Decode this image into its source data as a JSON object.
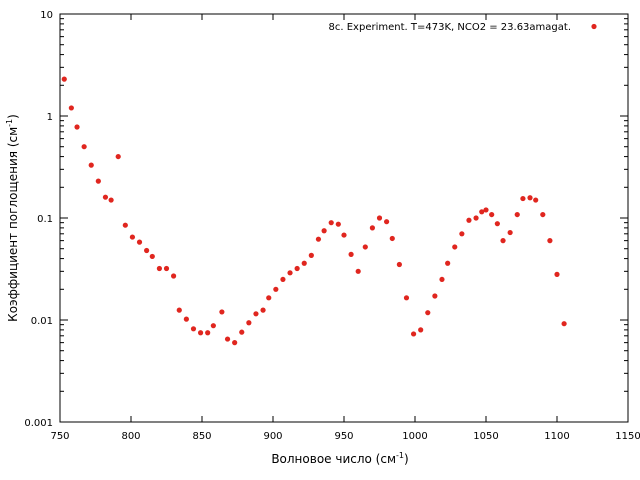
{
  "chart_data": {
    "type": "scatter",
    "xlabel_base": "Волновое число (см",
    "xlabel_sup": "-1",
    "xlabel_end": ")",
    "ylabel_base": "Коэффициент поглощения (см",
    "ylabel_sup": "-1",
    "ylabel_end": ")",
    "xlim": [
      750,
      1150
    ],
    "ylim": [
      0.001,
      10
    ],
    "yscale": "log",
    "legend_position": "top-right",
    "x_ticks": [
      750,
      800,
      850,
      900,
      950,
      1000,
      1050,
      1100,
      1150
    ],
    "x_tick_labels": [
      "750",
      "800",
      "850",
      "900",
      "950",
      "1000",
      "1050",
      "1100",
      "1150"
    ],
    "y_ticks": [
      0.001,
      0.01,
      0.1,
      1,
      10
    ],
    "y_tick_labels": [
      "0.001",
      "0.01",
      "0.1",
      "1",
      "10"
    ],
    "series": [
      {
        "name": "8c. Experiment. T=473K, NCO2 = 23.63amagat.",
        "color": "#e0261f",
        "points": [
          [
            753,
            2.3
          ],
          [
            758,
            1.2
          ],
          [
            762,
            0.78
          ],
          [
            767,
            0.5
          ],
          [
            772,
            0.33
          ],
          [
            777,
            0.23
          ],
          [
            782,
            0.16
          ],
          [
            786,
            0.15
          ],
          [
            791,
            0.4
          ],
          [
            796,
            0.085
          ],
          [
            801,
            0.065
          ],
          [
            806,
            0.058
          ],
          [
            811,
            0.048
          ],
          [
            815,
            0.042
          ],
          [
            820,
            0.032
          ],
          [
            825,
            0.032
          ],
          [
            830,
            0.027
          ],
          [
            834,
            0.0125
          ],
          [
            839,
            0.0102
          ],
          [
            844,
            0.0082
          ],
          [
            849,
            0.0075
          ],
          [
            854,
            0.0075
          ],
          [
            858,
            0.0088
          ],
          [
            864,
            0.012
          ],
          [
            868,
            0.0065
          ],
          [
            873,
            0.006
          ],
          [
            878,
            0.0076
          ],
          [
            883,
            0.0094
          ],
          [
            888,
            0.0115
          ],
          [
            893,
            0.0125
          ],
          [
            897,
            0.0165
          ],
          [
            902,
            0.02
          ],
          [
            907,
            0.025
          ],
          [
            912,
            0.029
          ],
          [
            917,
            0.032
          ],
          [
            922,
            0.036
          ],
          [
            927,
            0.043
          ],
          [
            932,
            0.062
          ],
          [
            936,
            0.075
          ],
          [
            941,
            0.09
          ],
          [
            946,
            0.087
          ],
          [
            950,
            0.068
          ],
          [
            955,
            0.044
          ],
          [
            960,
            0.03
          ],
          [
            965,
            0.052
          ],
          [
            970,
            0.08
          ],
          [
            975,
            0.1
          ],
          [
            980,
            0.092
          ],
          [
            984,
            0.063
          ],
          [
            989,
            0.035
          ],
          [
            994,
            0.0165
          ],
          [
            999,
            0.0073
          ],
          [
            1004,
            0.008
          ],
          [
            1009,
            0.0118
          ],
          [
            1014,
            0.0172
          ],
          [
            1019,
            0.025
          ],
          [
            1023,
            0.036
          ],
          [
            1028,
            0.052
          ],
          [
            1033,
            0.07
          ],
          [
            1038,
            0.095
          ],
          [
            1043,
            0.1
          ],
          [
            1047,
            0.115
          ],
          [
            1050,
            0.12
          ],
          [
            1054,
            0.108
          ],
          [
            1058,
            0.088
          ],
          [
            1062,
            0.06
          ],
          [
            1067,
            0.072
          ],
          [
            1072,
            0.108
          ],
          [
            1076,
            0.155
          ],
          [
            1081,
            0.158
          ],
          [
            1085,
            0.15
          ],
          [
            1090,
            0.108
          ],
          [
            1095,
            0.06
          ],
          [
            1100,
            0.028
          ],
          [
            1105,
            0.0092
          ]
        ]
      }
    ]
  }
}
